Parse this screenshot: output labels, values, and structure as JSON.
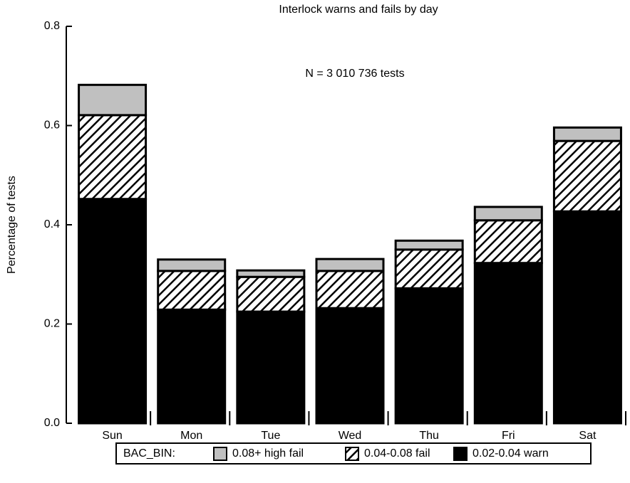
{
  "chart_data": {
    "type": "stacked_bar",
    "title": "Interlock warns and fails by day",
    "annotation": "N = 3 010 736 tests",
    "y_label": "Percentage of tests",
    "legend_title": "BAC_BIN:",
    "legend": "bottom",
    "categories": [
      "Sun",
      "Mon",
      "Tue",
      "Wed",
      "Thu",
      "Fri",
      "Sat"
    ],
    "series": [
      {
        "name": "0.08+ high fail",
        "color": "#c0c0c0",
        "values": [
          0.061,
          0.023,
          0.013,
          0.024,
          0.018,
          0.027,
          0.027
        ]
      },
      {
        "name": "0.04-0.08 fail",
        "color": "#000000",
        "pattern": "hatch",
        "values": [
          0.169,
          0.078,
          0.07,
          0.075,
          0.078,
          0.086,
          0.142
        ]
      },
      {
        "name": "0.02-0.04 warn",
        "color": "#000000",
        "values": [
          0.452,
          0.229,
          0.225,
          0.232,
          0.272,
          0.323,
          0.427
        ]
      }
    ],
    "ylim": [
      0,
      0.8
    ],
    "yticks": [
      {
        "value": 0,
        "label": "0.0"
      },
      0.2,
      0.4,
      0.6,
      0.8
    ]
  }
}
